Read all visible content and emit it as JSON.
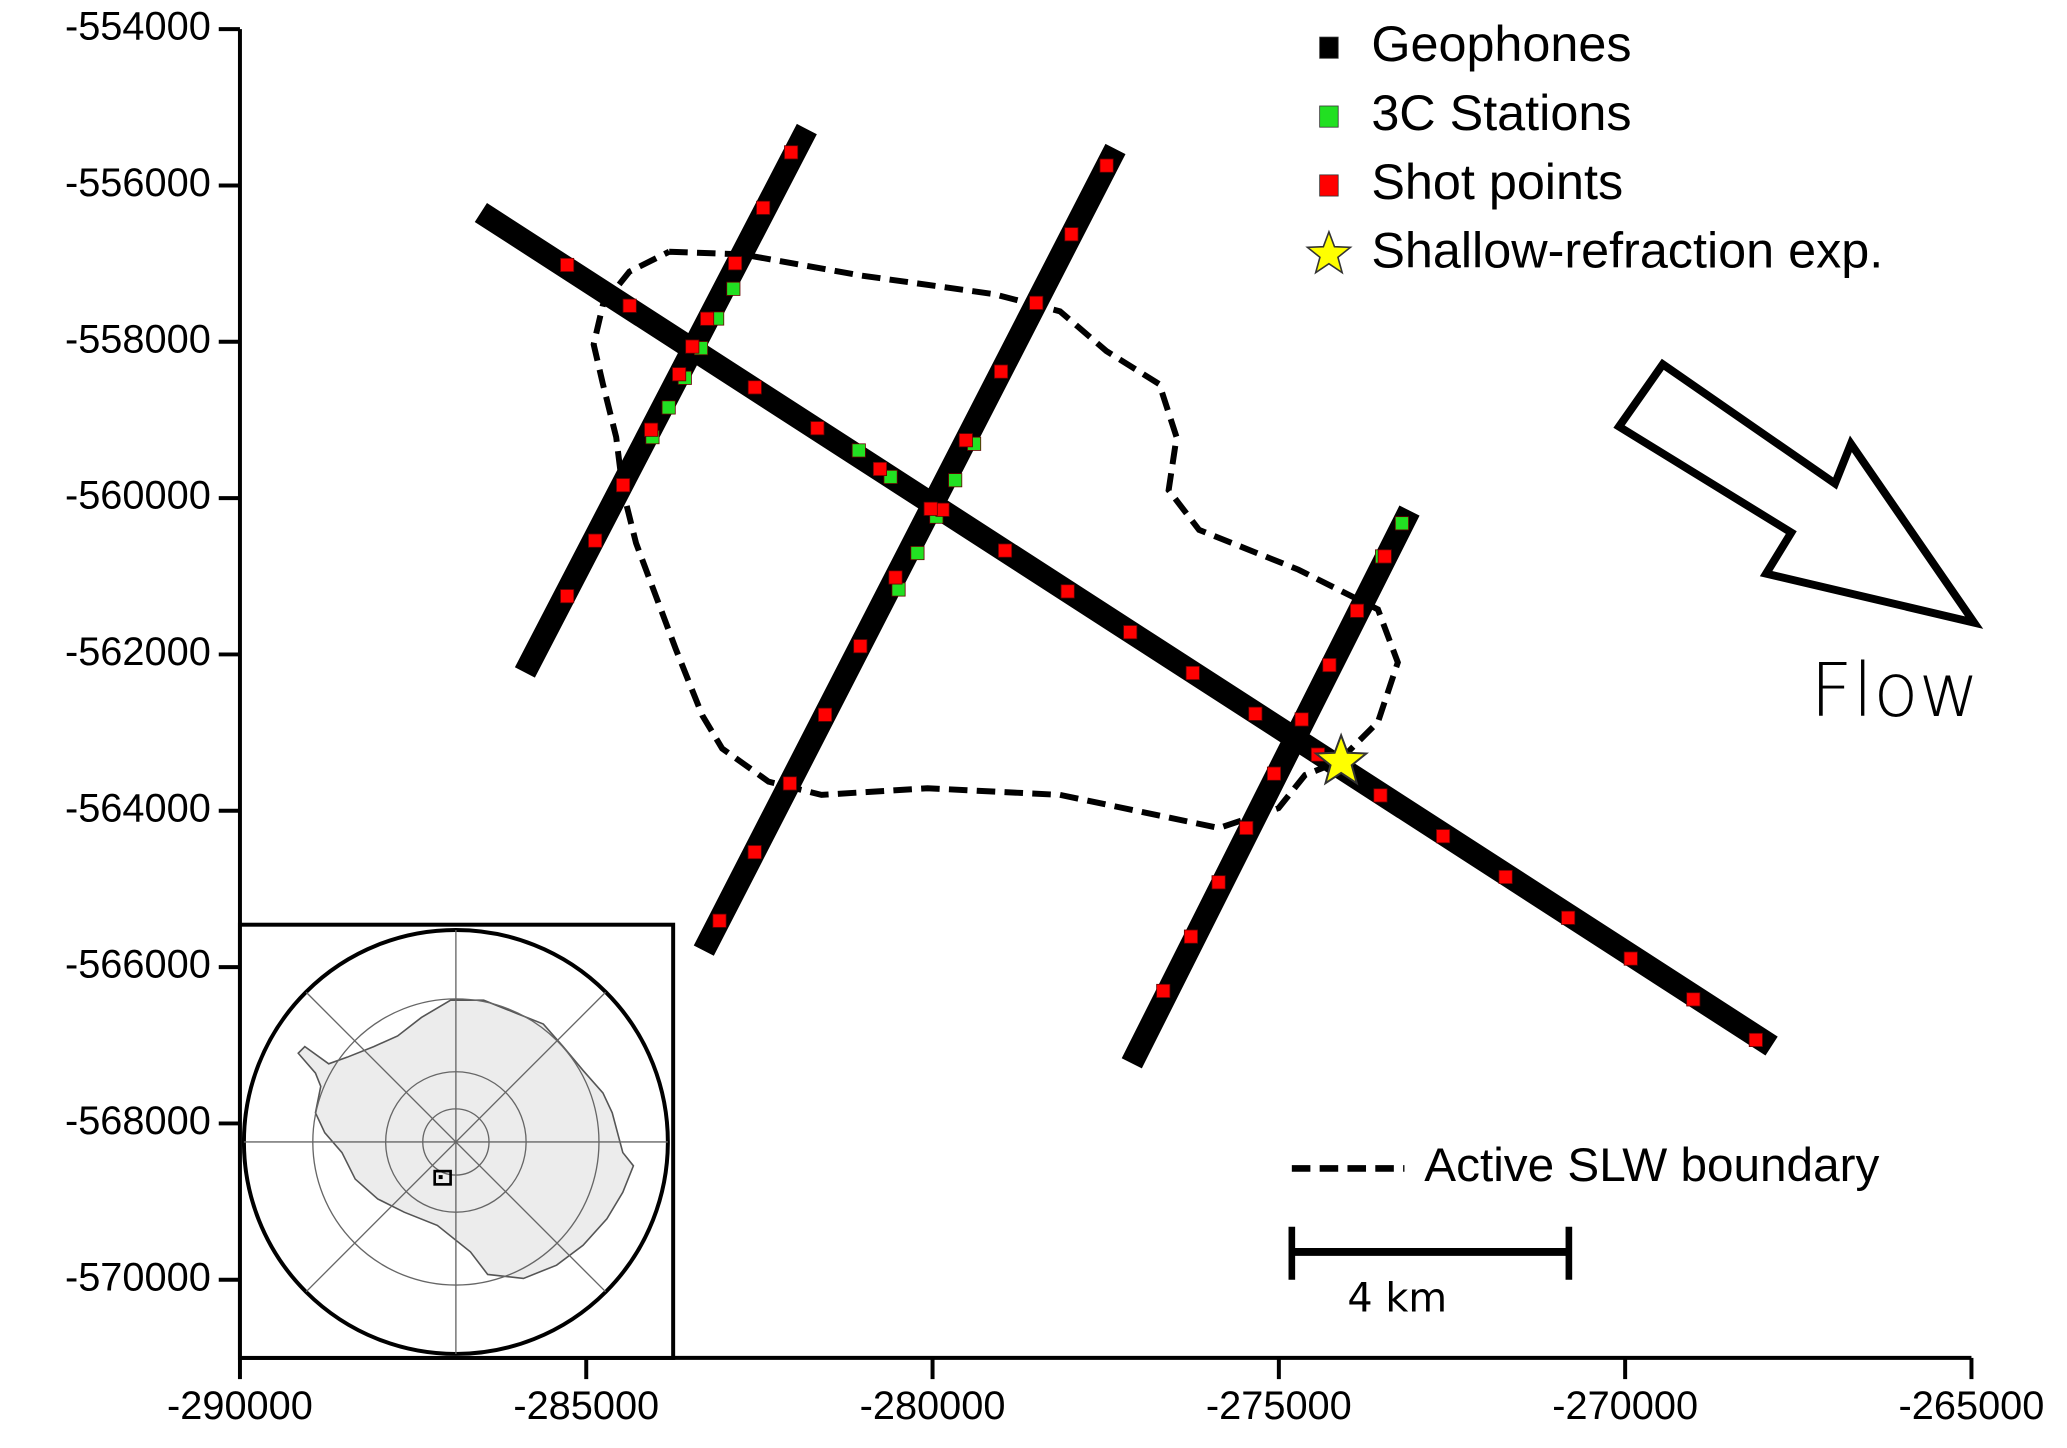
{
  "chart_data": {
    "type": "scatter",
    "xlim": [
      -290000,
      -265000
    ],
    "ylim": [
      -571000,
      -554000
    ],
    "xticks": [
      -290000,
      -285000,
      -280000,
      -275000,
      -270000,
      -265000
    ],
    "yticks": [
      -554000,
      -556000,
      -558000,
      -560000,
      -562000,
      -564000,
      -566000,
      -568000,
      -570000
    ],
    "legend": "upper right",
    "series": [
      {
        "name": "Geophones",
        "color": "#000000",
        "marker": "line",
        "x": [
          -286385,
          -268022,
          null,
          -285811,
          -281890,
          null,
          -283229,
          -277433,
          null,
          -277051,
          -273187
        ],
        "y": [
          -556424,
          -566932,
          null,
          -562102,
          -555407,
          null,
          -565661,
          -555661,
          null,
          -567102,
          -560288
        ]
      },
      {
        "name": "3C Stations",
        "color": "#22e022",
        "marker": "square",
        "x": [
          -284044,
          -283810,
          -283577,
          -283343,
          -283110,
          -282876,
          -281065,
          -280606,
          -280491,
          -280218,
          -279945,
          -279673,
          -279400,
          -273510,
          -273223
        ],
        "y": [
          -559220,
          -558840,
          -558461,
          -558081,
          -557702,
          -557322,
          -559390,
          -559729,
          -561169,
          -560703,
          -560237,
          -559771,
          -559305,
          -560746,
          -560322
        ]
      },
      {
        "name": "Shot points",
        "color": "#ff0000",
        "marker": "square",
        "x": [
          -285276,
          -284373,
          -283469,
          -282566,
          -281663,
          -280759,
          -279856,
          -278953,
          -278049,
          -277146,
          -276243,
          -275339,
          -274436,
          -273533,
          -272629,
          -271726,
          -270823,
          -269919,
          -269016,
          -268113,
          -285276,
          -284872,
          -284468,
          -284063,
          -283659,
          -283255,
          -282851,
          -282446,
          -282042,
          -283076,
          -282568,
          -282060,
          -281552,
          -281043,
          -280535,
          -280027,
          -279519,
          -279011,
          -278503,
          -277995,
          -277487,
          -276669,
          -276269,
          -275870,
          -275470,
          -275070,
          -274670,
          -274270,
          -273871,
          -273471
        ],
        "y": [
          -557017,
          -557539,
          -558061,
          -558583,
          -559105,
          -559627,
          -560149,
          -560671,
          -561193,
          -561715,
          -562237,
          -562759,
          -563281,
          -563803,
          -564325,
          -564847,
          -565369,
          -565891,
          -566413,
          -566932,
          -561254,
          -560544,
          -559834,
          -559125,
          -558415,
          -557705,
          -556995,
          -556286,
          -555576,
          -565407,
          -564529,
          -563650,
          -562772,
          -561894,
          -561015,
          -560137,
          -559259,
          -558381,
          -557502,
          -556624,
          -555746,
          -566305,
          -565610,
          -564915,
          -564220,
          -563525,
          -562831,
          -562136,
          -561441,
          -560746
        ]
      },
      {
        "name": "Shallow-refraction exp.",
        "color": "#ffff00",
        "marker": "star",
        "x": [
          -274101
        ],
        "y": [
          -563373
        ]
      },
      {
        "name": "Active SLW boundary",
        "color": "#000000",
        "marker": "dashed",
        "x": [
          -283802,
          -282750,
          -281029,
          -279116,
          -278160,
          -277490,
          -276725,
          -276476,
          -276591,
          -276151,
          -274717,
          -273569,
          -273282,
          -273569,
          -274143,
          -274621,
          -275004,
          -275864,
          -278160,
          -280073,
          -281603,
          -282368,
          -283037,
          -283324,
          -283707,
          -284281,
          -284472,
          -284568,
          -284759,
          -284893,
          -284759,
          -284376,
          -283802
        ],
        "y": [
          -556847,
          -556881,
          -557153,
          -557390,
          -557610,
          -558119,
          -558542,
          -559220,
          -559898,
          -560407,
          -560915,
          -561424,
          -562102,
          -562864,
          -563373,
          -563542,
          -563966,
          -564220,
          -563797,
          -563712,
          -563797,
          -563627,
          -563203,
          -562780,
          -561932,
          -560576,
          -559898,
          -559220,
          -558542,
          -558034,
          -557525,
          -557102,
          -556847
        ]
      }
    ],
    "annotation": "Flow",
    "scale_bar": {
      "value": 4000,
      "label": "4 km"
    }
  }
}
